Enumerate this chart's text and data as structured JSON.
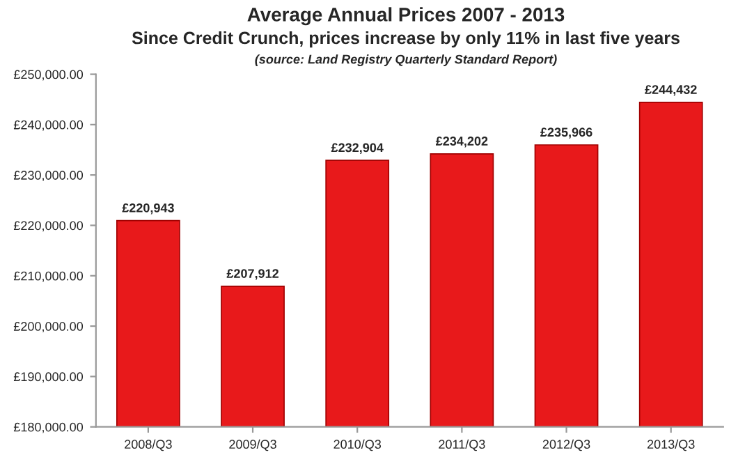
{
  "chart_data": {
    "type": "bar",
    "title": "Average Annual Prices 2007 - 2013",
    "subtitle": "Since Credit Crunch, prices increase by only 11% in last five years",
    "annotations": [
      "(source: Land Registry Quarterly Standard Report)"
    ],
    "categories": [
      "2008/Q3",
      "2009/Q3",
      "2010/Q3",
      "2011/Q3",
      "2012/Q3",
      "2013/Q3"
    ],
    "values": [
      220943,
      207912,
      232904,
      234202,
      235966,
      244432
    ],
    "value_labels": [
      "£220,943",
      "£207,912",
      "£232,904",
      "£234,202",
      "£235,966",
      "£244,432"
    ],
    "color": "#e8191b",
    "ylim": [
      180000,
      250000
    ],
    "yticks": [
      {
        "value": 180000,
        "label": "£180,000.00"
      },
      {
        "value": 190000,
        "label": "£190,000.00"
      },
      {
        "value": 200000,
        "label": "£200,000.00"
      },
      {
        "value": 210000,
        "label": "£210,000.00"
      },
      {
        "value": 220000,
        "label": "£220,000.00"
      },
      {
        "value": 230000,
        "label": "£230,000.00"
      },
      {
        "value": 240000,
        "label": "£240,000.00"
      },
      {
        "value": 250000,
        "label": "£250,000.00"
      }
    ],
    "grid": false
  }
}
